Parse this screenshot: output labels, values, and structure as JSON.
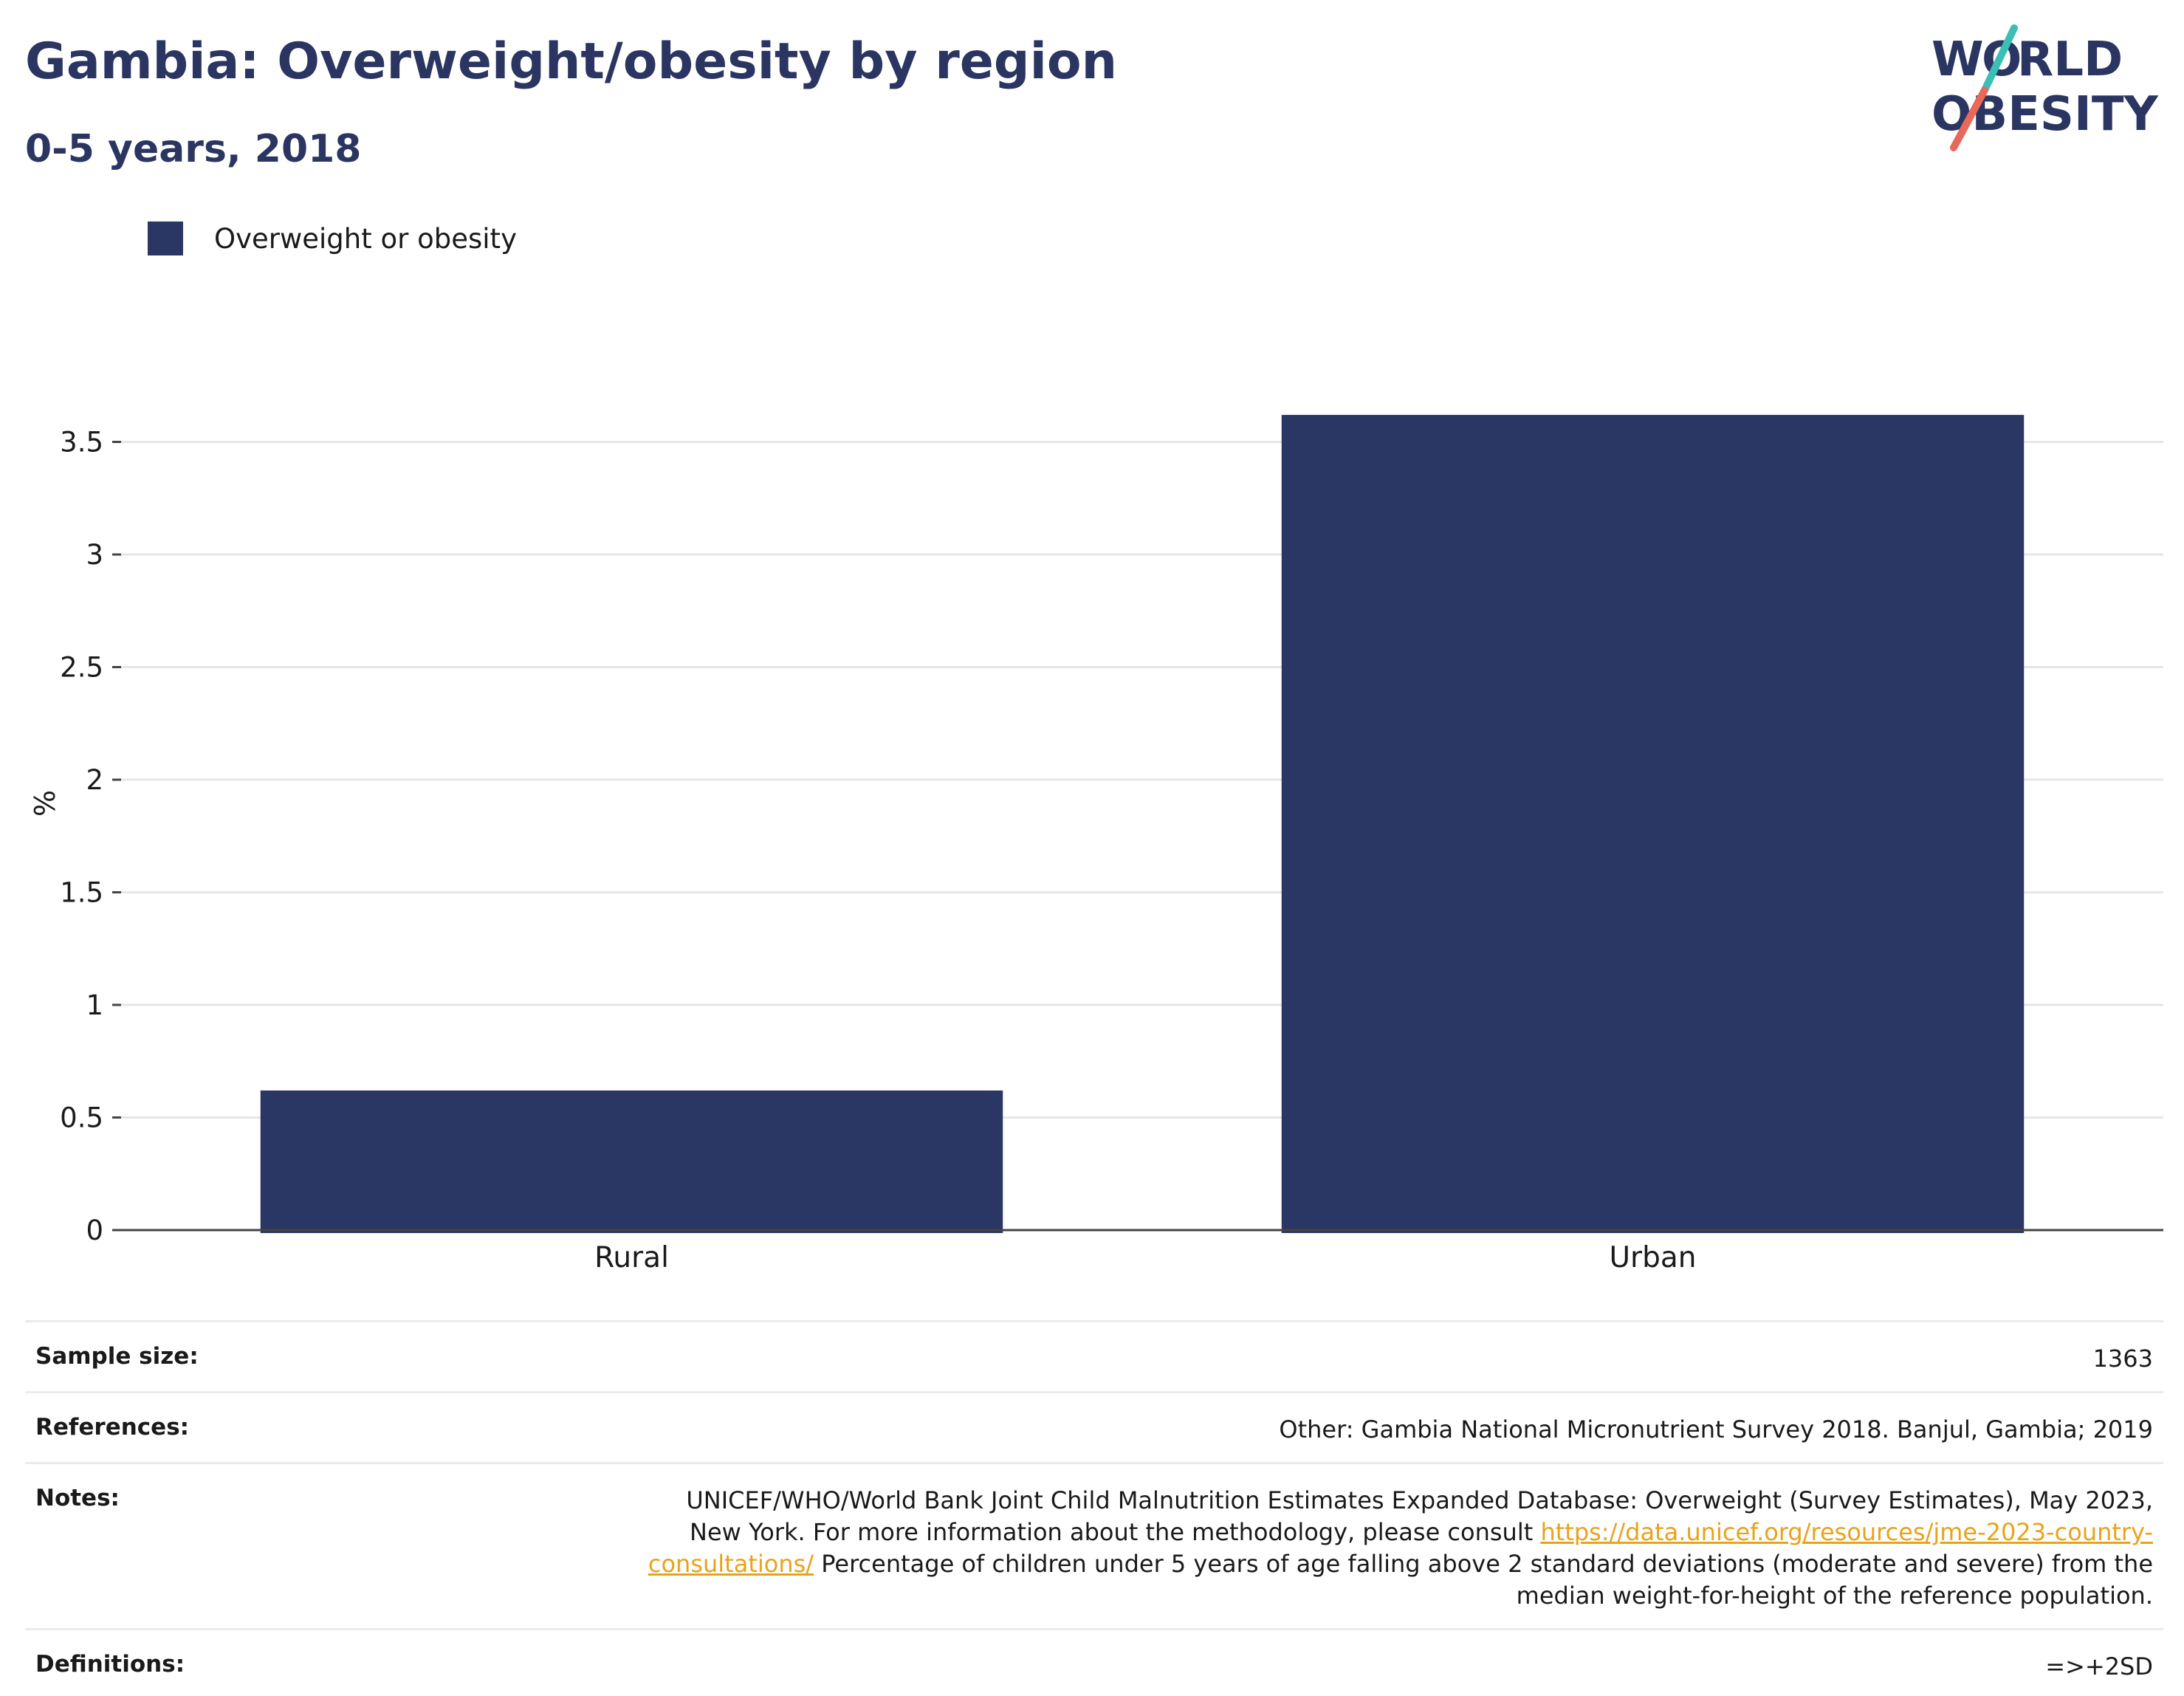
{
  "header": {
    "title": "Gambia: Overweight/obesity by region",
    "subtitle": "0-5 years, 2018"
  },
  "logo": {
    "text_top": "WORLD",
    "text_bottom": "OBESITY",
    "colors": {
      "text": "#2b3561",
      "slash_top": "#3bbfb5",
      "slash_bottom": "#e8685a"
    }
  },
  "legend": {
    "label": "Overweight or obesity",
    "color": "#2a3663"
  },
  "chart_data": {
    "type": "bar",
    "categories": [
      "Rural",
      "Urban"
    ],
    "series": [
      {
        "name": "Overweight or obesity",
        "values": [
          0.62,
          3.62
        ]
      }
    ],
    "ylabel": "%",
    "ylim": [
      0,
      3.8
    ],
    "yticks": [
      0,
      0.5,
      1,
      1.5,
      2,
      2.5,
      3,
      3.5
    ],
    "ytick_labels": [
      "0",
      "0.5",
      "1",
      "1.5",
      "2",
      "2.5",
      "3",
      "3.5"
    ],
    "grid": true,
    "bar_color": "#2a3663",
    "legend_position": "top-left"
  },
  "info_table": {
    "sample_size": {
      "label": "Sample size:",
      "value": "1363"
    },
    "references": {
      "label": "References:",
      "value": "Other: Gambia National Micronutrient Survey 2018. Banjul, Gambia; 2019"
    },
    "notes": {
      "label": "Notes:",
      "text_1": "UNICEF/WHO/World Bank Joint Child Malnutrition Estimates Expanded Database: Overweight (Survey Estimates), May 2023, New York. For more information about the methodology, please consult",
      "link": "https://data.unicef.org/resources/jme-2023-country-consultations/",
      "text_2": "Percentage of children under 5 years of age falling above 2 standard deviations (moderate and severe) from the median weight-for-height of the reference population."
    },
    "definitions": {
      "label": "Definitions:",
      "value": "=>+2SD"
    }
  }
}
